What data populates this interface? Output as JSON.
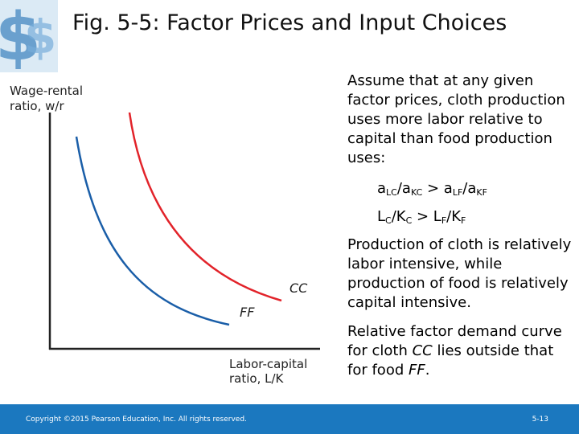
{
  "title": "Fig. 5-5:  Factor Prices and Input Choices",
  "chart_data": {
    "type": "line",
    "ylabel": "Wage-rental ratio, w/r",
    "xlabel": "Labor-capital ratio, L/K",
    "series": [
      {
        "name": "CC",
        "color": "#e2232a"
      },
      {
        "name": "FF",
        "color": "#1a5ea8"
      }
    ]
  },
  "text": {
    "p1": "Assume that at any given factor prices, cloth production uses more labor relative to capital than food production uses:",
    "formula1": {
      "a1": "a",
      "s1": "LC",
      "sep1": "/a",
      "s2": "KC",
      "gt": " > a",
      "s3": "LF",
      "sep2": "/a",
      "s4": "KF"
    },
    "formula2": {
      "a1": "L",
      "s1": "C",
      "sep1": "/K",
      "s2": "C",
      "gt": " > L",
      "s3": "F",
      "sep2": "/K",
      "s4": "F"
    },
    "p2": "Production of cloth is relatively labor intensive, while production of food is relatively capital intensive.",
    "p3": {
      "lead": "Relative factor demand curve for cloth ",
      "cc": "CC",
      "mid": " lies outside that for food ",
      "ff": "FF",
      "end": "."
    }
  },
  "footer": {
    "copyright": "Copyright ©2015 Pearson Education, Inc. All rights reserved.",
    "page": "5-13"
  },
  "colors": {
    "footer": "#1b78bf",
    "cc_curve": "#e2232a",
    "ff_curve": "#1a5ea8"
  }
}
